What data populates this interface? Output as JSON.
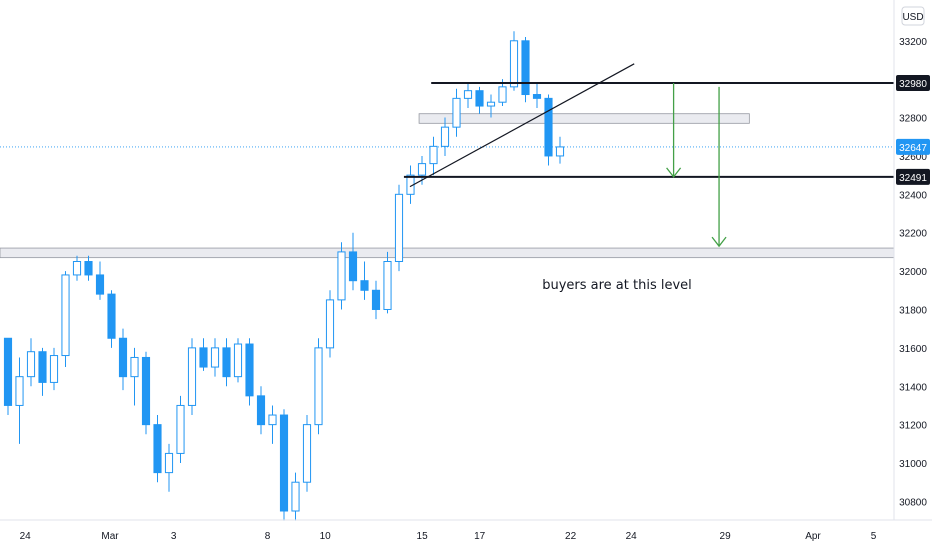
{
  "chart_data": {
    "type": "candlestick",
    "currency": "USD",
    "x_tick_labels": [
      "24",
      "Mar",
      "3",
      "8",
      "10",
      "15",
      "17",
      "22",
      "24",
      "29",
      "Apr",
      "5"
    ],
    "y_tick_labels": [
      "33200",
      "33000",
      "32800",
      "32600",
      "32400",
      "32200",
      "32000",
      "31800",
      "31600",
      "31400",
      "31200",
      "31000",
      "30800"
    ],
    "ylim": [
      30750,
      33350
    ],
    "price_markers": [
      {
        "value": 32980,
        "label": "32980",
        "style": "dark"
      },
      {
        "value": 32647,
        "label": "32647",
        "style": "current"
      },
      {
        "value": 32491,
        "label": "32491",
        "style": "dark"
      }
    ],
    "horizontal_lines": [
      {
        "value": 32980,
        "color": "#131722"
      },
      {
        "value": 32491,
        "color": "#131722"
      }
    ],
    "zones": [
      {
        "from": 32070,
        "to": 32120,
        "color": "#e1e3ea"
      },
      {
        "from": 32770,
        "to": 32820,
        "color": "#e1e3ea"
      }
    ],
    "trendline": {
      "from": [
        13.3,
        32440
      ],
      "to": [
        20.7,
        33080
      ],
      "color": "#131722"
    },
    "arrows": [
      {
        "x": 22.0,
        "from": 32980,
        "to": 32491,
        "color": "#43a047"
      },
      {
        "x": 23.5,
        "from": 32960,
        "to": 32130,
        "color": "#43a047"
      }
    ],
    "annotation": "buyers are at this level",
    "candle_color": "#2196f3",
    "candles": [
      [
        31650,
        31650,
        31250,
        31300
      ],
      [
        31300,
        31550,
        31100,
        31450
      ],
      [
        31450,
        31650,
        31400,
        31580
      ],
      [
        31580,
        31600,
        31350,
        31420
      ],
      [
        31420,
        31600,
        31380,
        31560
      ],
      [
        31560,
        32000,
        31500,
        31980
      ],
      [
        31980,
        32080,
        31950,
        32050
      ],
      [
        32050,
        32080,
        31950,
        31980
      ],
      [
        31980,
        32050,
        31850,
        31880
      ],
      [
        31880,
        31900,
        31600,
        31650
      ],
      [
        31650,
        31700,
        31380,
        31450
      ],
      [
        31450,
        31600,
        31300,
        31550
      ],
      [
        31550,
        31580,
        31150,
        31200
      ],
      [
        31200,
        31250,
        30900,
        30950
      ],
      [
        30950,
        31100,
        30850,
        31050
      ],
      [
        31050,
        31350,
        31000,
        31300
      ],
      [
        31300,
        31650,
        31250,
        31600
      ],
      [
        31600,
        31650,
        31480,
        31500
      ],
      [
        31500,
        31650,
        31450,
        31600
      ],
      [
        31600,
        31650,
        31400,
        31450
      ],
      [
        31450,
        31650,
        31420,
        31620
      ],
      [
        31620,
        31650,
        31300,
        31350
      ],
      [
        31350,
        31400,
        31150,
        31200
      ],
      [
        31200,
        31300,
        31100,
        31250
      ],
      [
        31250,
        31280,
        30700,
        30750
      ],
      [
        30750,
        30950,
        30700,
        30900
      ],
      [
        30900,
        31250,
        30850,
        31200
      ],
      [
        31200,
        31650,
        31150,
        31600
      ],
      [
        31600,
        31900,
        31550,
        31850
      ],
      [
        31850,
        32150,
        31800,
        32100
      ],
      [
        32100,
        32200,
        31900,
        31950
      ],
      [
        31950,
        32050,
        31850,
        31900
      ],
      [
        31900,
        31950,
        31750,
        31800
      ],
      [
        31800,
        32100,
        31780,
        32050
      ],
      [
        32050,
        32450,
        32000,
        32400
      ],
      [
        32400,
        32550,
        32350,
        32500
      ],
      [
        32500,
        32600,
        32450,
        32560
      ],
      [
        32560,
        32700,
        32500,
        32650
      ],
      [
        32650,
        32800,
        32600,
        32750
      ],
      [
        32750,
        32950,
        32700,
        32900
      ],
      [
        32900,
        32980,
        32850,
        32940
      ],
      [
        32940,
        32960,
        32820,
        32860
      ],
      [
        32860,
        32920,
        32800,
        32880
      ],
      [
        32880,
        33000,
        32860,
        32960
      ],
      [
        32960,
        33250,
        32940,
        33200
      ],
      [
        33200,
        33220,
        32880,
        32920
      ],
      [
        32920,
        32980,
        32850,
        32900
      ],
      [
        32900,
        32920,
        32550,
        32600
      ],
      [
        32600,
        32700,
        32560,
        32647
      ]
    ]
  }
}
